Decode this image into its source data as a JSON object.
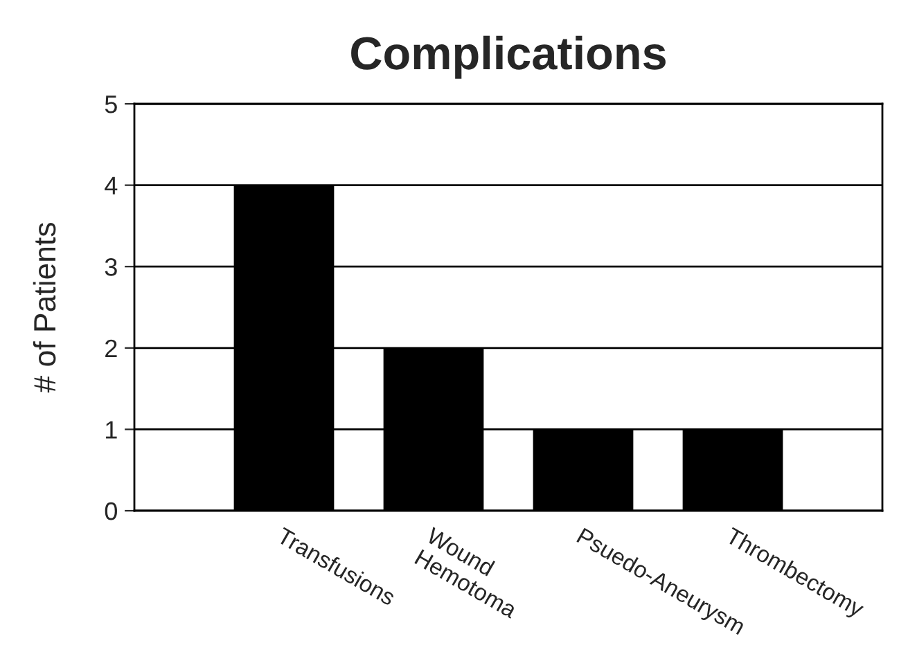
{
  "chart_data": {
    "type": "bar",
    "title": "Complications",
    "ylabel": "# of Patients",
    "categories": [
      "Transfusions",
      "Wound\nHemotoma",
      "Psuedo-Aneurysm",
      "Thrombectomy"
    ],
    "values": [
      4,
      2,
      1,
      1
    ],
    "color": "#000000",
    "ylim": [
      0,
      5
    ],
    "yticks": [
      0,
      1,
      2,
      3,
      4,
      5
    ],
    "grid": "y"
  }
}
